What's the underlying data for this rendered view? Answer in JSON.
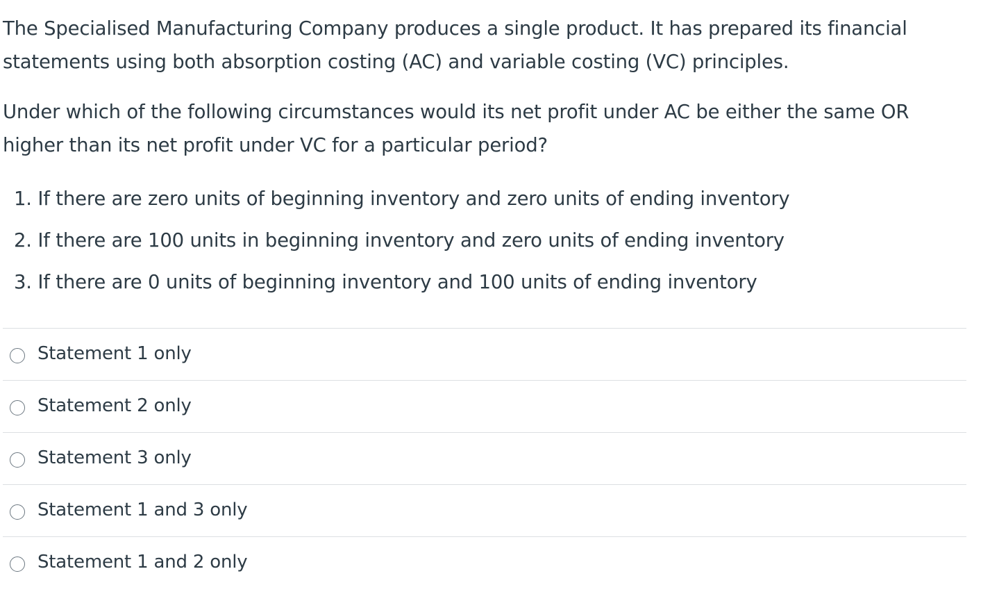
{
  "question": {
    "paragraph1": "The Specialised Manufacturing Company produces a single product. It has prepared its financial statements using both absorption costing (AC) and variable costing (VC) principles.",
    "paragraph2": "Under which of the following circumstances would its net profit under AC be either the same OR higher than its net profit under VC for a particular period?",
    "statements": [
      "1. If there are zero units of beginning inventory and zero units of ending inventory",
      "2. If there are 100 units in beginning inventory and zero units of ending inventory",
      "3. If there are 0 units of beginning inventory and 100 units of ending inventory"
    ]
  },
  "answers": [
    {
      "label": "Statement 1 only",
      "selected": false
    },
    {
      "label": "Statement 2 only",
      "selected": false
    },
    {
      "label": "Statement 3 only",
      "selected": false
    },
    {
      "label": "Statement 1 and 3 only",
      "selected": false
    },
    {
      "label": "Statement 1 and 2 only",
      "selected": false
    }
  ],
  "colors": {
    "text": "#2d3b45",
    "divider": "#dcdfe2",
    "radio_border": "#6b7780"
  }
}
